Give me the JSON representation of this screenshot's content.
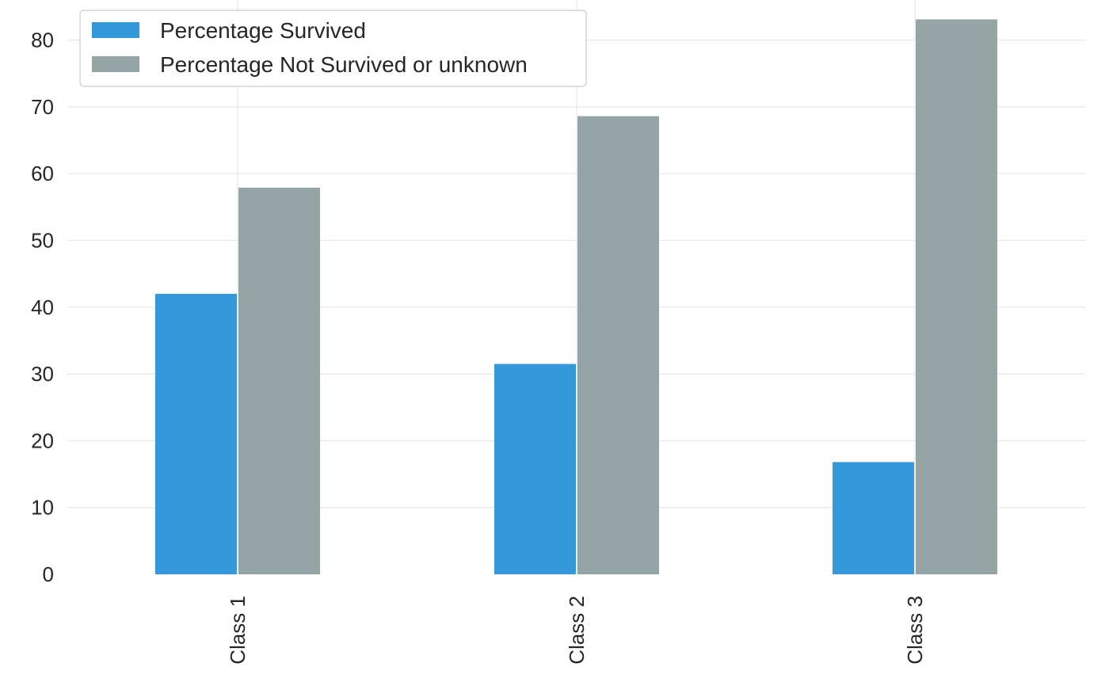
{
  "chart_data": {
    "type": "bar",
    "title": "",
    "xlabel": "",
    "ylabel": "",
    "categories": [
      "Class 1",
      "Class 2",
      "Class 3"
    ],
    "series": [
      {
        "name": "Percentage Survived",
        "values": [
          42.0,
          31.5,
          16.8
        ],
        "color": "#3498db"
      },
      {
        "name": "Percentage Not Survived or unknown",
        "values": [
          57.9,
          68.6,
          83.1
        ],
        "color": "#95a5a6"
      }
    ],
    "yticks": [
      "0",
      "10",
      "20",
      "30",
      "40",
      "50",
      "60",
      "70",
      "80"
    ],
    "ylim": [
      0,
      86
    ],
    "grid": true,
    "legend_position": "top-left",
    "x_tick_rotation": "vertical"
  }
}
